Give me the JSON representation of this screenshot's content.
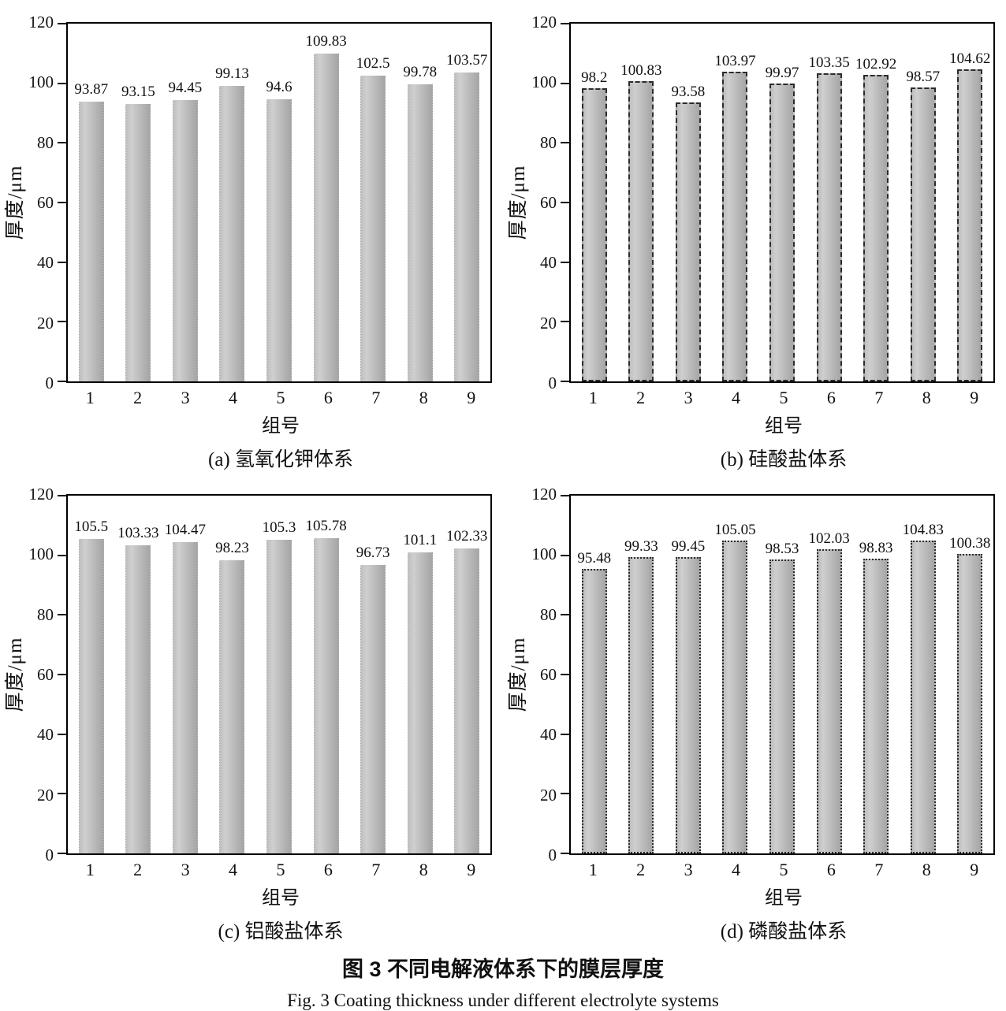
{
  "figure": {
    "title_zh": "图 3  不同电解液体系下的膜层厚度",
    "title_en": "Fig. 3  Coating thickness under different electrolyte systems"
  },
  "axes": {
    "ylabel": "厚度/μm",
    "xlabel": "组号",
    "ylim": [
      0,
      120
    ],
    "yticks": [
      0,
      20,
      40,
      60,
      80,
      100,
      120
    ],
    "grid": false,
    "legend": "none"
  },
  "colors": {
    "bar_light": "#cfcfcf",
    "bar_dark": "#a5a5a5",
    "bar_border_dark": "#2b2b2b",
    "axis": "#000000"
  },
  "chart_data": [
    {
      "type": "bar",
      "panel": "a",
      "caption": "(a) 氢氧化钾体系",
      "bar_border": "plain",
      "categories": [
        "1",
        "2",
        "3",
        "4",
        "5",
        "6",
        "7",
        "8",
        "9"
      ],
      "values": [
        93.87,
        93.15,
        94.45,
        99.13,
        94.6,
        109.83,
        102.5,
        99.78,
        103.57
      ],
      "xlabel": "组号",
      "ylabel": "厚度/μm",
      "ylim": [
        0,
        120
      ]
    },
    {
      "type": "bar",
      "panel": "b",
      "caption": "(b) 硅酸盐体系",
      "bar_border": "dashed",
      "categories": [
        "1",
        "2",
        "3",
        "4",
        "5",
        "6",
        "7",
        "8",
        "9"
      ],
      "values": [
        98.2,
        100.83,
        93.58,
        103.97,
        99.97,
        103.35,
        102.92,
        98.57,
        104.62
      ],
      "xlabel": "组号",
      "ylabel": "厚度/μm",
      "ylim": [
        0,
        120
      ]
    },
    {
      "type": "bar",
      "panel": "c",
      "caption": "(c) 铝酸盐体系",
      "bar_border": "plain",
      "categories": [
        "1",
        "2",
        "3",
        "4",
        "5",
        "6",
        "7",
        "8",
        "9"
      ],
      "values": [
        105.5,
        103.33,
        104.47,
        98.23,
        105.3,
        105.78,
        96.73,
        101.1,
        102.33
      ],
      "xlabel": "组号",
      "ylabel": "厚度/μm",
      "ylim": [
        0,
        120
      ]
    },
    {
      "type": "bar",
      "panel": "d",
      "caption": "(d) 磷酸盐体系",
      "bar_border": "dotted",
      "categories": [
        "1",
        "2",
        "3",
        "4",
        "5",
        "6",
        "7",
        "8",
        "9"
      ],
      "values": [
        95.48,
        99.33,
        99.45,
        105.05,
        98.53,
        102.03,
        98.83,
        104.83,
        100.38
      ],
      "xlabel": "组号",
      "ylabel": "厚度/μm",
      "ylim": [
        0,
        120
      ]
    }
  ]
}
